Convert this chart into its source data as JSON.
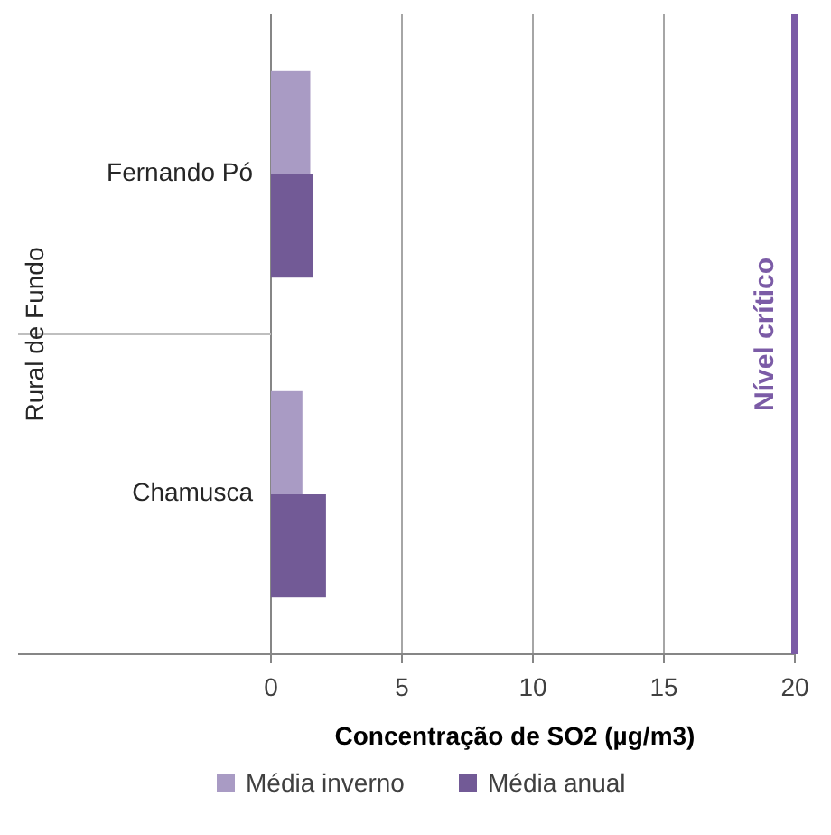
{
  "chart_data": {
    "type": "bar",
    "orientation": "horizontal",
    "categories": [
      "Fernando Pó",
      "Chamusca"
    ],
    "ylabel": "Rural de Fundo",
    "xlabel": "Concentração de SO2  (µg/m3)",
    "series": [
      {
        "name": "Média inverno",
        "color": "#a99bc4",
        "values": [
          1.5,
          1.2
        ]
      },
      {
        "name": "Média anual",
        "color": "#725a96",
        "values": [
          1.6,
          2.1
        ]
      }
    ],
    "xlim": [
      0,
      20
    ],
    "xticks": [
      0,
      5,
      10,
      15,
      20
    ],
    "grid": "x",
    "legend": "bottom",
    "ref_lines": [
      {
        "axis": "x",
        "value": 20,
        "label": "Nível crítico",
        "color": "#7b5ba6"
      }
    ]
  }
}
